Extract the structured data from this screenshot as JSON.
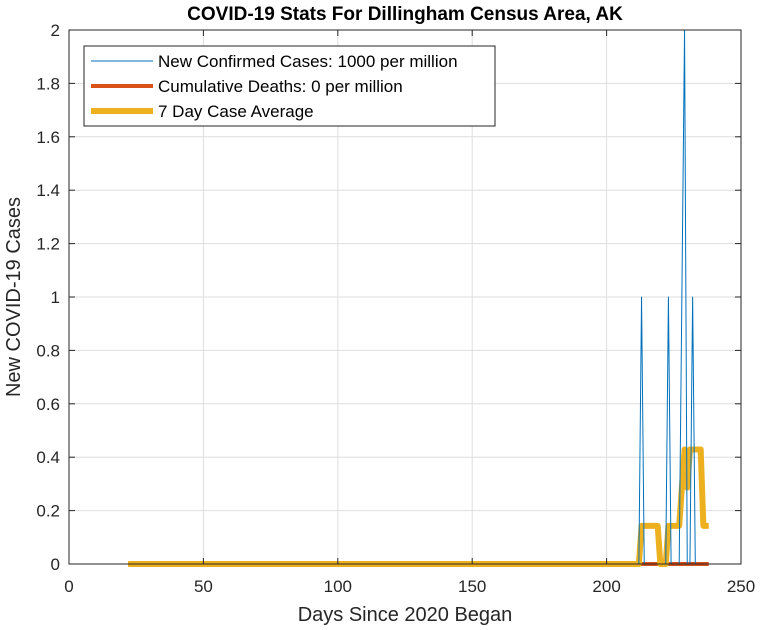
{
  "chart_data": {
    "type": "line",
    "title": "COVID-19 Stats For Dillingham Census Area, AK",
    "xlabel": "Days Since 2020 Began",
    "ylabel": "New COVID-19 Cases",
    "xlim": [
      0,
      250
    ],
    "ylim": [
      0,
      2
    ],
    "xticks": [
      0,
      50,
      100,
      150,
      200,
      250
    ],
    "yticks": [
      0,
      0.2,
      0.4,
      0.6,
      0.8,
      1,
      1.2,
      1.4,
      1.6,
      1.8,
      2
    ],
    "xtick_labels": [
      "0",
      "50",
      "100",
      "150",
      "200",
      "250"
    ],
    "ytick_labels": [
      "0",
      "0.2",
      "0.4",
      "0.6",
      "0.8",
      "1",
      "1.2",
      "1.4",
      "1.6",
      "1.8",
      "2"
    ],
    "grid": true,
    "legend_position": "top-left",
    "series": [
      {
        "name": "New Confirmed Cases: 1000 per million",
        "color": "#0072BD",
        "line_width": 1,
        "x": [
          22,
          212,
          213,
          214,
          222,
          223,
          224,
          227,
          228,
          229,
          230,
          231,
          232,
          233,
          238
        ],
        "y": [
          0,
          0,
          1,
          0,
          0,
          1,
          0,
          0,
          1,
          2,
          0,
          0,
          1,
          0,
          0
        ]
      },
      {
        "name": "Cumulative Deaths: 0 per million",
        "color": "#D95319",
        "line_width": 4,
        "x": [
          22,
          238
        ],
        "y": [
          0,
          0
        ]
      },
      {
        "name": "7 Day Case Average",
        "color": "#EDB120",
        "line_width": 6,
        "x": [
          22,
          212,
          213,
          219,
          220,
          222,
          223,
          227,
          228,
          229,
          230,
          231,
          232,
          235,
          236,
          238
        ],
        "y": [
          0,
          0,
          0.143,
          0.143,
          0,
          0,
          0.143,
          0.143,
          0.286,
          0.429,
          0.286,
          0.429,
          0.429,
          0.429,
          0.143,
          0.143
        ]
      }
    ]
  }
}
